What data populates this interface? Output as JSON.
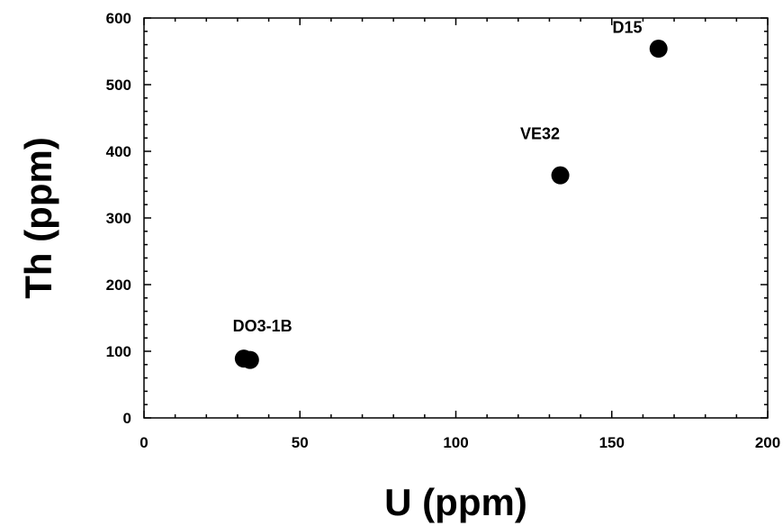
{
  "chart_data": {
    "type": "scatter",
    "title": "",
    "xlabel": "U (ppm)",
    "ylabel": "Th (ppm)",
    "xlim": [
      0,
      200
    ],
    "ylim": [
      0,
      600
    ],
    "x_ticks": [
      0,
      50,
      100,
      150,
      200
    ],
    "y_ticks": [
      0,
      100,
      200,
      300,
      400,
      500,
      600
    ],
    "x_minor_step": 10,
    "y_minor_step": 20,
    "grid": false,
    "legend": "none",
    "marker_color": "#000000",
    "points": [
      {
        "x": 32,
        "y": 89,
        "label": ""
      },
      {
        "x": 34,
        "y": 87,
        "label": ""
      },
      {
        "x": 133.5,
        "y": 364,
        "label": ""
      },
      {
        "x": 165,
        "y": 554,
        "label": ""
      }
    ],
    "annotations": [
      {
        "text": "DO3-1B",
        "x": 38,
        "y": 130
      },
      {
        "text": "VE32",
        "x": 127,
        "y": 418
      },
      {
        "text": "D15",
        "x": 155,
        "y": 578
      }
    ]
  }
}
